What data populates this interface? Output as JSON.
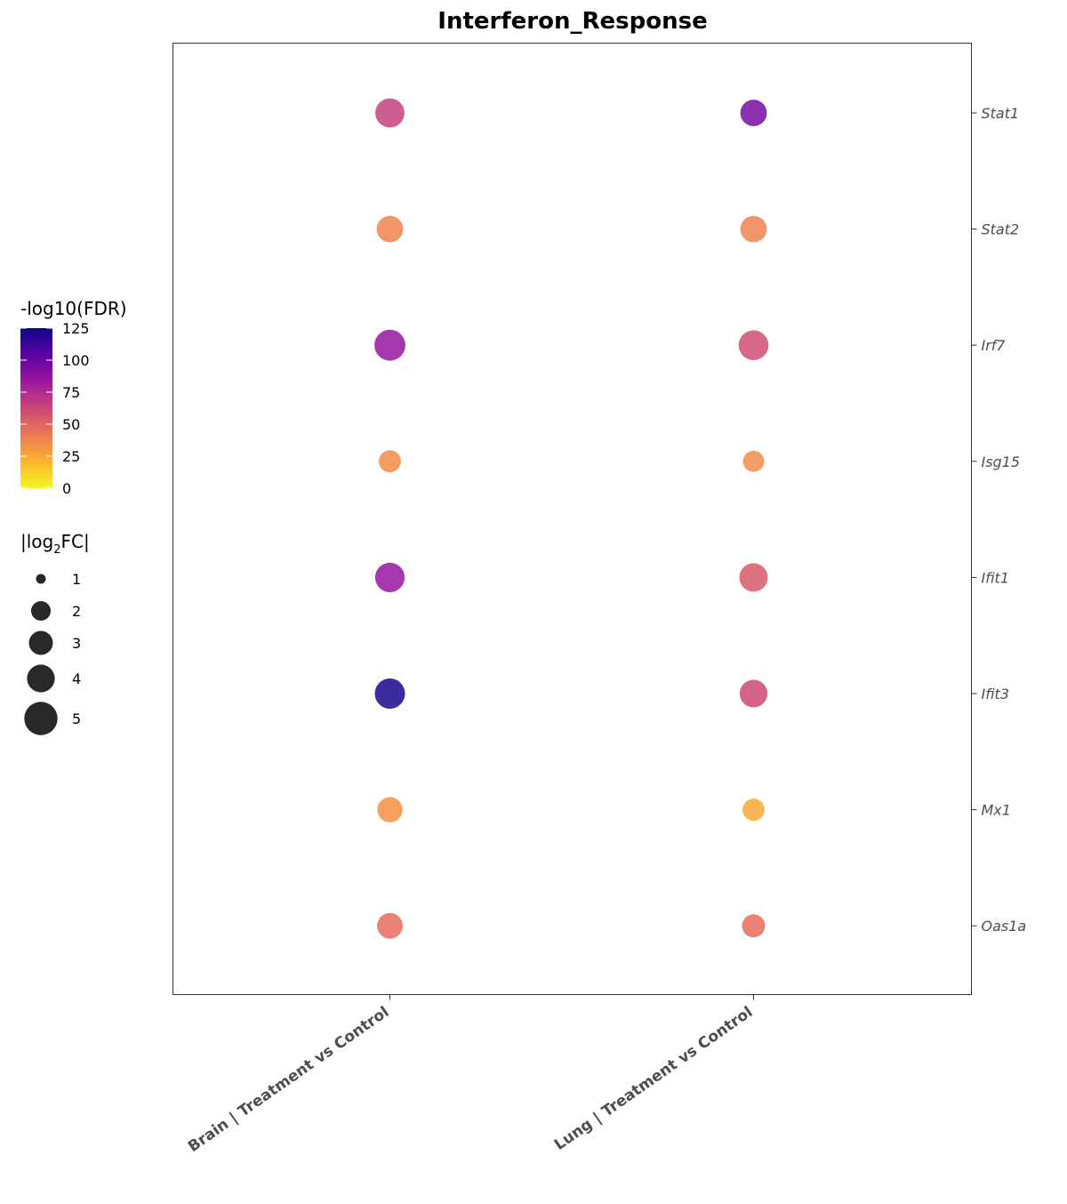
{
  "chart_data": {
    "type": "scatter",
    "title": "Interferon_Response",
    "xlabel": "",
    "ylabel": "",
    "categories": [
      "Brain | Treatment vs Control",
      "Lung | Treatment vs Control"
    ],
    "genes": [
      "Stat1",
      "Stat2",
      "Irf7",
      "Isg15",
      "Ifit1",
      "Ifit3",
      "Mx1",
      "Oas1a"
    ],
    "points": [
      {
        "gene": "Stat1",
        "condition": "Brain | Treatment vs Control",
        "neg_log10_fdr": 65,
        "abs_log2fc": 4.0
      },
      {
        "gene": "Stat1",
        "condition": "Lung | Treatment vs Control",
        "neg_log10_fdr": 95,
        "abs_log2fc": 3.3
      },
      {
        "gene": "Stat2",
        "condition": "Brain | Treatment vs Control",
        "neg_log10_fdr": 38,
        "abs_log2fc": 3.3
      },
      {
        "gene": "Stat2",
        "condition": "Lung | Treatment vs Control",
        "neg_log10_fdr": 38,
        "abs_log2fc": 3.3
      },
      {
        "gene": "Irf7",
        "condition": "Brain | Treatment vs Control",
        "neg_log10_fdr": 85,
        "abs_log2fc": 4.5
      },
      {
        "gene": "Irf7",
        "condition": "Lung | Treatment vs Control",
        "neg_log10_fdr": 60,
        "abs_log2fc": 4.2
      },
      {
        "gene": "Isg15",
        "condition": "Brain | Treatment vs Control",
        "neg_log10_fdr": 35,
        "abs_log2fc": 2.3
      },
      {
        "gene": "Isg15",
        "condition": "Lung | Treatment vs Control",
        "neg_log10_fdr": 35,
        "abs_log2fc": 2.1
      },
      {
        "gene": "Ifit1",
        "condition": "Brain | Treatment vs Control",
        "neg_log10_fdr": 85,
        "abs_log2fc": 4.1
      },
      {
        "gene": "Ifit1",
        "condition": "Lung | Treatment vs Control",
        "neg_log10_fdr": 55,
        "abs_log2fc": 3.8
      },
      {
        "gene": "Ifit3",
        "condition": "Brain | Treatment vs Control",
        "neg_log10_fdr": 122,
        "abs_log2fc": 4.3
      },
      {
        "gene": "Ifit3",
        "condition": "Lung | Treatment vs Control",
        "neg_log10_fdr": 62,
        "abs_log2fc": 3.6
      },
      {
        "gene": "Mx1",
        "condition": "Brain | Treatment vs Control",
        "neg_log10_fdr": 33,
        "abs_log2fc": 3.0
      },
      {
        "gene": "Mx1",
        "condition": "Lung | Treatment vs Control",
        "neg_log10_fdr": 25,
        "abs_log2fc": 2.3
      },
      {
        "gene": "Oas1a",
        "condition": "Brain | Treatment vs Control",
        "neg_log10_fdr": 47,
        "abs_log2fc": 3.1
      },
      {
        "gene": "Oas1a",
        "condition": "Lung | Treatment vs Control",
        "neg_log10_fdr": 47,
        "abs_log2fc": 2.5
      }
    ],
    "color_legend": {
      "title": "-log10(FDR)",
      "range": [
        0,
        125
      ],
      "ticks": [
        0,
        25,
        50,
        75,
        100,
        125
      ],
      "palette": "plasma",
      "palette_colors": [
        "#f0f921",
        "#fdb32f",
        "#ed7953",
        "#cc4778",
        "#9c179e",
        "#5c01a6",
        "#0d0887"
      ]
    },
    "size_legend": {
      "title_prefix": "|log",
      "title_subscript": "2",
      "title_suffix": "FC|",
      "values": [
        1,
        2,
        3,
        4,
        5
      ]
    },
    "grid": false,
    "legend_position": "left",
    "y_axis_side": "right",
    "point_alpha": 0.85
  }
}
